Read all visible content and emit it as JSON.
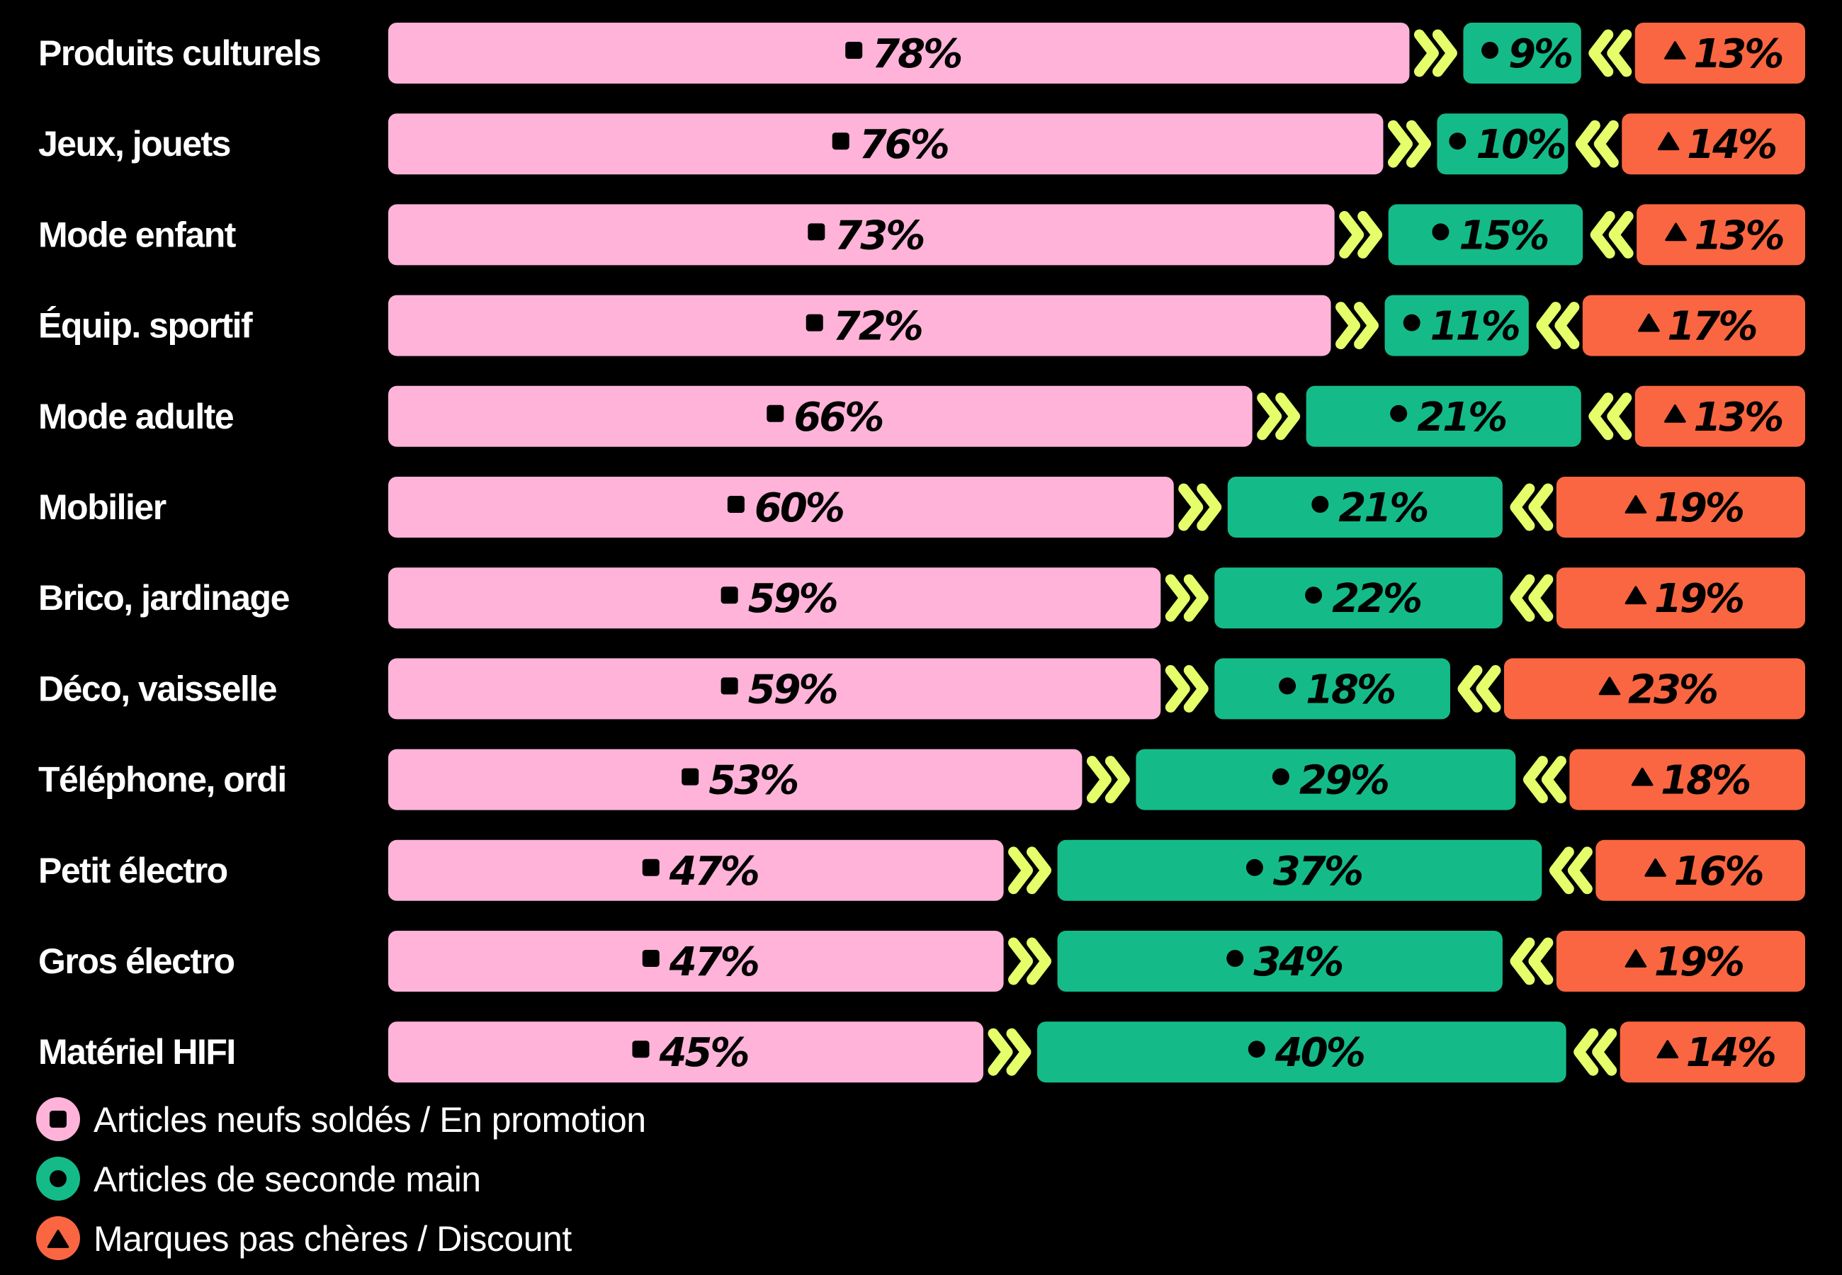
{
  "chart_data": {
    "type": "bar",
    "stacked": true,
    "orientation": "horizontal",
    "value_format": "percent",
    "xlim": [
      0,
      100
    ],
    "categories": [
      "Produits culturels",
      "Jeux, jouets",
      "Mode enfant",
      "Équip. sportif",
      "Mode adulte",
      "Mobilier",
      "Brico, jardinage",
      "Déco, vaisselle",
      "Téléphone, ordi",
      "Petit électro",
      "Gros électro",
      "Matériel HIFI"
    ],
    "series": [
      {
        "name": "Articles neufs soldés / En promotion",
        "color": "#ffb3d9",
        "marker": "square",
        "values": [
          78,
          76,
          73,
          72,
          66,
          60,
          59,
          59,
          53,
          47,
          47,
          45
        ]
      },
      {
        "name": "Articles de seconde main",
        "color": "#14bb88",
        "marker": "circle",
        "values": [
          9,
          10,
          15,
          11,
          21,
          21,
          22,
          18,
          29,
          37,
          34,
          40
        ]
      },
      {
        "name": "Marques pas chères / Discount",
        "color": "#f96641",
        "marker": "triangle",
        "values": [
          13,
          14,
          13,
          17,
          13,
          19,
          19,
          23,
          18,
          16,
          19,
          14
        ]
      }
    ],
    "separator_color": "#e5ff6b",
    "legend_position": "bottom-left",
    "grid": false
  }
}
